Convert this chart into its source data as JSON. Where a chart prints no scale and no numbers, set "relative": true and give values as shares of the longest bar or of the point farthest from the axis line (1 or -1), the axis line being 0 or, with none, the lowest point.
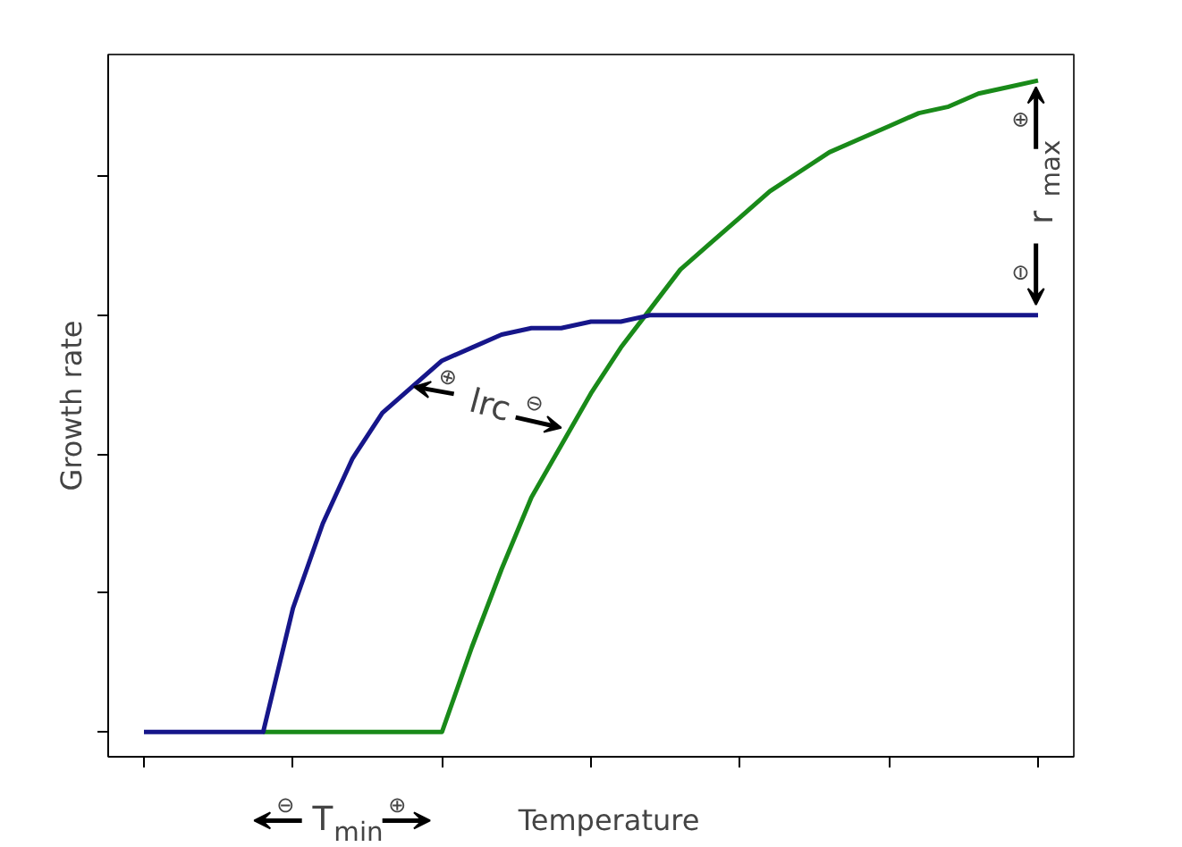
{
  "chart_data": {
    "type": "line",
    "xlabel": "Temperature",
    "ylabel": "Growth rate",
    "relative": true,
    "categories": [
      null,
      null,
      null,
      null,
      null,
      null,
      null,
      null,
      null,
      null,
      null,
      null,
      null,
      null,
      null,
      null,
      null,
      null,
      null,
      null,
      null,
      null,
      null,
      null,
      null,
      null,
      null,
      null,
      null,
      null,
      null
    ],
    "series": [
      {
        "color": "#198a19",
        "values": [
          null,
          null,
          null,
          null,
          0,
          0,
          0,
          0,
          0,
          0,
          0,
          0.13,
          0.25,
          0.36,
          0.44,
          0.52,
          0.59,
          0.65,
          0.71,
          0.75,
          0.79,
          0.83,
          0.86,
          0.89,
          0.91,
          0.93,
          0.95,
          0.96,
          0.98,
          0.99,
          1
        ]
      },
      {
        "color": "#16168a",
        "values": [
          0,
          0,
          0,
          0,
          0,
          0.19,
          0.32,
          0.42,
          0.49,
          0.53,
          0.57,
          0.59,
          0.61,
          0.62,
          0.62,
          0.63,
          0.63,
          0.64,
          0.64,
          0.64,
          0.64,
          0.64,
          0.64,
          0.64,
          0.64,
          0.64,
          0.64,
          0.64,
          0.64,
          0.64,
          0.64
        ]
      }
    ],
    "annotations": [
      "⊖",
      "T$_{min}$",
      "⊕",
      "⊕",
      "lrc",
      "⊖",
      "⊕",
      "r$_{max}$",
      "⊖"
    ]
  }
}
